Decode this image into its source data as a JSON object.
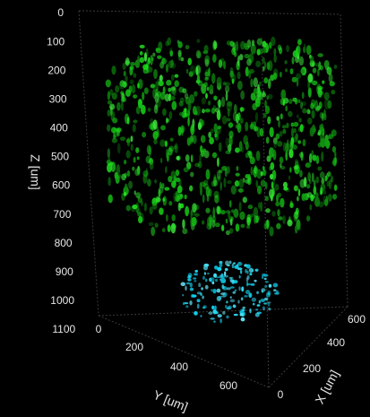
{
  "z_axis": {
    "label": "Z [um]",
    "ticks": [
      "0",
      "100",
      "200",
      "300",
      "400",
      "500",
      "600",
      "700",
      "800",
      "900",
      "1000",
      "1100"
    ]
  },
  "y_axis": {
    "label": "Y [um]",
    "ticks": [
      "0",
      "200",
      "400",
      "600"
    ]
  },
  "x_axis": {
    "label": "X [um]",
    "ticks": [
      "0",
      "200",
      "400",
      "600"
    ]
  }
}
